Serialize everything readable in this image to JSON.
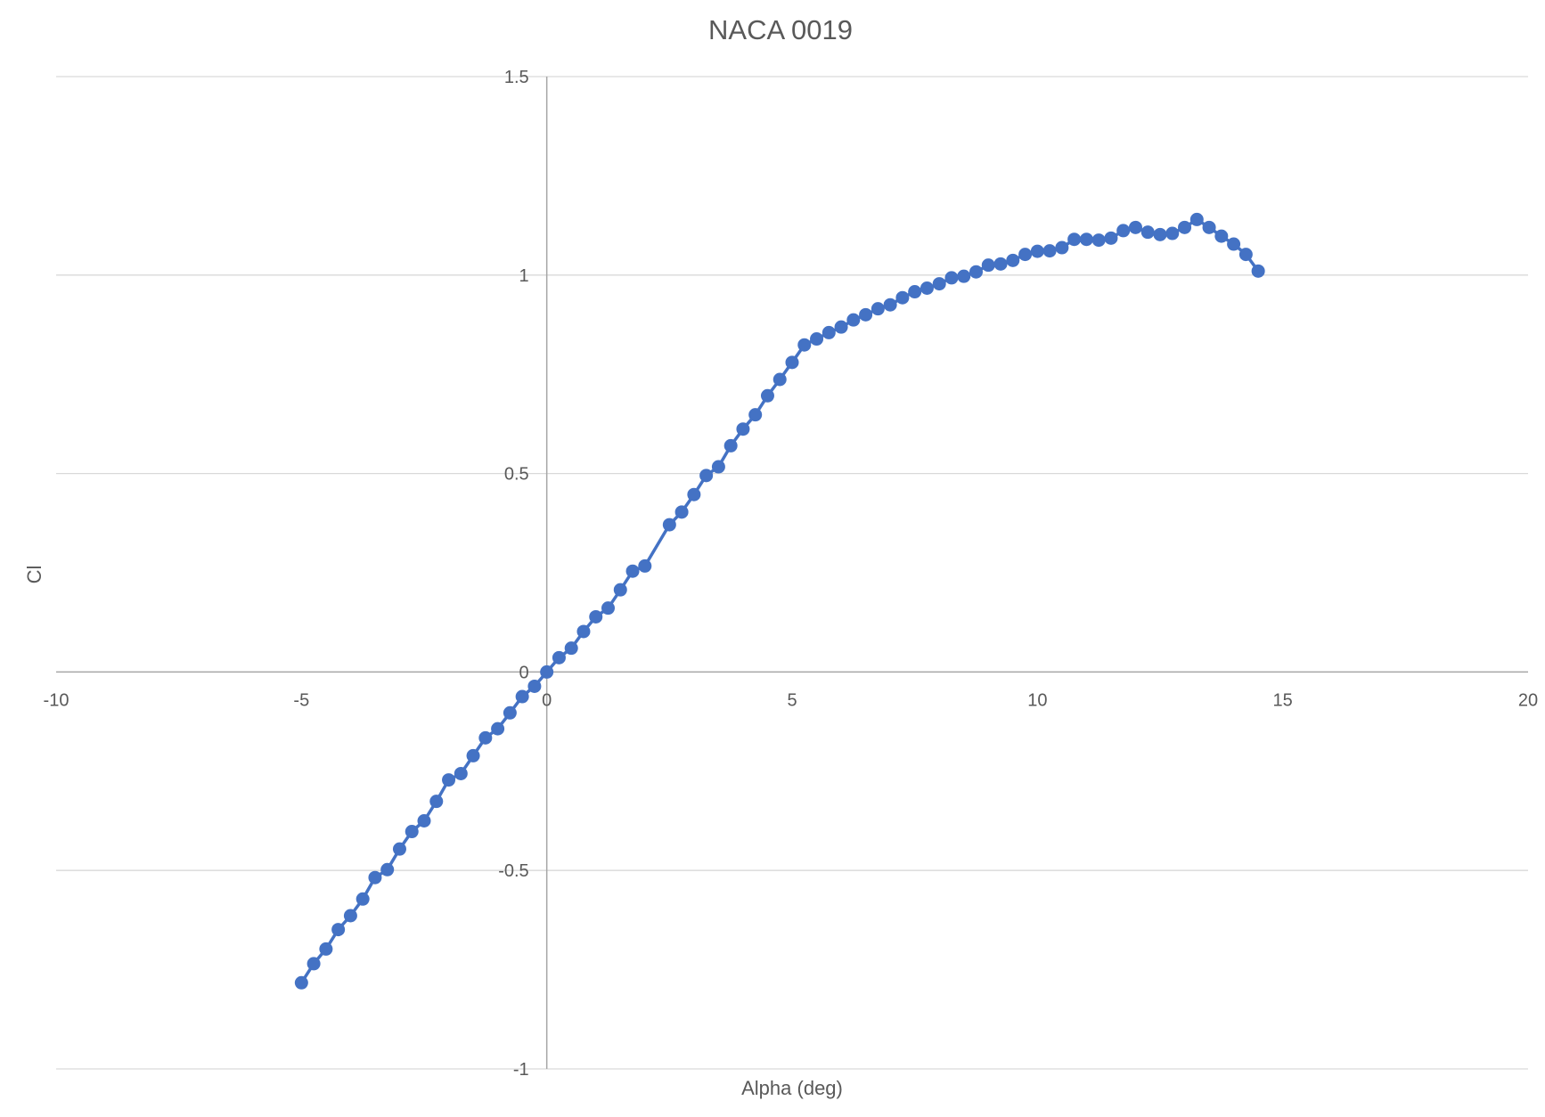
{
  "chart_data": {
    "type": "scatter",
    "title": "NACA 0019",
    "xlabel": "Alpha (deg)",
    "ylabel": "Cl",
    "xlim": [
      -10,
      20
    ],
    "ylim": [
      -1,
      1.5
    ],
    "x_ticks": [
      -10,
      -5,
      0,
      5,
      10,
      15,
      20
    ],
    "y_ticks": [
      -1,
      -0.5,
      0,
      0.5,
      1,
      1.5
    ],
    "x_tick_labels": [
      "-10",
      "-5",
      "0",
      "5",
      "10",
      "15",
      "20"
    ],
    "y_tick_labels": [
      "-1",
      "-0.5",
      "0",
      "0.5",
      "1",
      "1.5"
    ],
    "grid": true,
    "legend": "none",
    "series_color": "#4472c4",
    "series": [
      {
        "x": [
          -5,
          -4.75,
          -4.5,
          -4.25,
          -4,
          -3.75,
          -3.5,
          -3.25,
          -3,
          -2.75,
          -2.5,
          -2.25,
          -2,
          -1.75,
          -1.5,
          -1.25,
          -1,
          -0.75,
          -0.5,
          -0.25,
          0,
          0.25,
          0.5,
          0.75,
          1,
          1.25,
          1.5,
          1.75,
          2,
          2.5,
          2.75,
          3,
          3.25,
          3.5,
          3.75,
          4,
          4.25,
          4.5,
          4.75,
          5,
          5.25,
          5.5,
          5.75,
          6,
          6.25,
          6.5,
          6.75,
          7,
          7.25,
          7.5,
          7.75,
          8,
          8.25,
          8.5,
          8.75,
          9,
          9.25,
          9.5,
          9.75,
          10,
          10.25,
          10.5,
          10.75,
          11,
          11.25,
          11.5,
          11.75,
          12,
          12.25,
          12.5,
          12.75,
          13,
          13.25,
          13.5,
          13.75,
          14,
          14.25,
          14.5
        ],
        "y": [
          -0.783,
          -0.735,
          -0.698,
          -0.649,
          -0.614,
          -0.572,
          -0.518,
          -0.498,
          -0.446,
          -0.402,
          -0.375,
          -0.326,
          -0.272,
          -0.256,
          -0.211,
          -0.166,
          -0.143,
          -0.103,
          -0.062,
          -0.036,
          0,
          0.036,
          0.06,
          0.102,
          0.139,
          0.161,
          0.207,
          0.254,
          0.267,
          0.371,
          0.403,
          0.447,
          0.495,
          0.517,
          0.57,
          0.612,
          0.648,
          0.696,
          0.737,
          0.78,
          0.824,
          0.839,
          0.855,
          0.869,
          0.887,
          0.9,
          0.915,
          0.925,
          0.943,
          0.958,
          0.967,
          0.978,
          0.993,
          0.997,
          1.008,
          1.025,
          1.028,
          1.037,
          1.052,
          1.06,
          1.061,
          1.069,
          1.09,
          1.09,
          1.088,
          1.093,
          1.112,
          1.12,
          1.108,
          1.102,
          1.105,
          1.12,
          1.14,
          1.12,
          1.098,
          1.078,
          1.052,
          1.01
        ]
      }
    ]
  }
}
